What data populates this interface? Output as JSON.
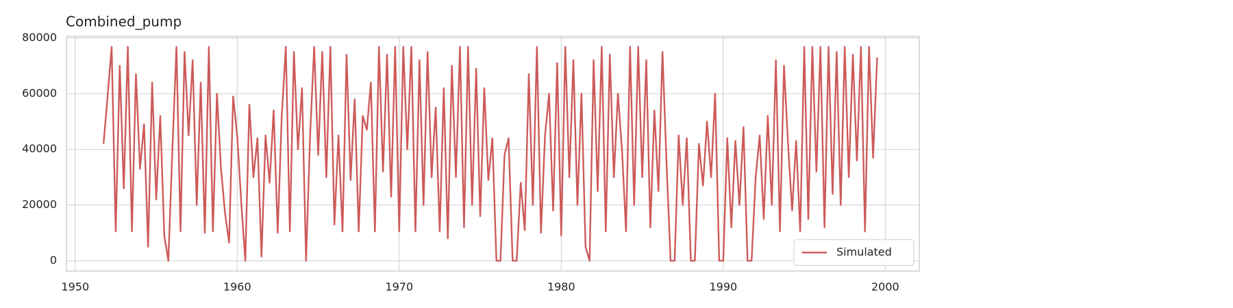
{
  "chart_data": {
    "type": "line",
    "title": "Combined_pump",
    "x": [
      1951.75,
      1952,
      1952.25,
      1952.5,
      1952.75,
      1953,
      1953.25,
      1953.5,
      1953.75,
      1954,
      1954.25,
      1954.5,
      1954.75,
      1955,
      1955.25,
      1955.5,
      1955.75,
      1956,
      1956.25,
      1956.5,
      1956.75,
      1957,
      1957.25,
      1957.5,
      1957.75,
      1958,
      1958.25,
      1958.5,
      1958.75,
      1959,
      1959.25,
      1959.5,
      1959.75,
      1960,
      1960.25,
      1960.5,
      1960.75,
      1961,
      1961.25,
      1961.5,
      1961.75,
      1962,
      1962.25,
      1962.5,
      1962.75,
      1963,
      1963.25,
      1963.5,
      1963.75,
      1964,
      1964.25,
      1964.5,
      1964.75,
      1965,
      1965.25,
      1965.5,
      1965.75,
      1966,
      1966.25,
      1966.5,
      1966.75,
      1967,
      1967.25,
      1967.5,
      1967.75,
      1968,
      1968.25,
      1968.5,
      1968.75,
      1969,
      1969.25,
      1969.5,
      1969.75,
      1970,
      1970.25,
      1970.5,
      1970.75,
      1971,
      1971.25,
      1971.5,
      1971.75,
      1972,
      1972.25,
      1972.5,
      1972.75,
      1973,
      1973.25,
      1973.5,
      1973.75,
      1974,
      1974.25,
      1974.5,
      1974.75,
      1975,
      1975.25,
      1975.5,
      1975.75,
      1976,
      1976.25,
      1976.5,
      1976.75,
      1977,
      1977.25,
      1977.5,
      1977.75,
      1978,
      1978.25,
      1978.5,
      1978.75,
      1979,
      1979.25,
      1979.5,
      1979.75,
      1980,
      1980.25,
      1980.5,
      1980.75,
      1981,
      1981.25,
      1981.5,
      1981.75,
      1982,
      1982.25,
      1982.5,
      1982.75,
      1983,
      1983.25,
      1983.5,
      1983.75,
      1984,
      1984.25,
      1984.5,
      1984.75,
      1985,
      1985.25,
      1985.5,
      1985.75,
      1986,
      1986.25,
      1986.5,
      1986.75,
      1987,
      1987.25,
      1987.5,
      1987.75,
      1988,
      1988.25,
      1988.5,
      1988.75,
      1989,
      1989.25,
      1989.5,
      1989.75,
      1990,
      1990.25,
      1990.5,
      1990.75,
      1991,
      1991.25,
      1991.5,
      1991.75,
      1992,
      1992.25,
      1992.5,
      1992.75,
      1993,
      1993.25,
      1993.5,
      1993.75,
      1994,
      1994.25,
      1994.5,
      1994.75,
      1995,
      1995.25,
      1995.5,
      1995.75,
      1996,
      1996.25,
      1996.5,
      1996.75,
      1997,
      1997.25,
      1997.5,
      1997.75,
      1998,
      1998.25,
      1998.5,
      1998.75,
      1999,
      1999.25,
      1999.5
    ],
    "series": [
      {
        "name": "Simulated",
        "color": "#cd5a5a",
        "values": [
          42000,
          59000,
          76800,
          10500,
          70000,
          26000,
          76800,
          10500,
          67000,
          33000,
          49000,
          5000,
          64000,
          22000,
          52000,
          9000,
          0,
          40000,
          76800,
          10500,
          75000,
          45000,
          72000,
          20000,
          64000,
          10000,
          76800,
          10500,
          60000,
          33000,
          17000,
          6500,
          59000,
          45000,
          21000,
          0,
          56000,
          30000,
          44000,
          1500,
          45000,
          28000,
          54000,
          10000,
          52000,
          76800,
          10500,
          75000,
          40000,
          62000,
          0,
          45000,
          76800,
          38000,
          75000,
          30000,
          76800,
          13000,
          45000,
          10500,
          74000,
          29000,
          58000,
          10500,
          52000,
          47000,
          64000,
          10500,
          76800,
          32000,
          74000,
          23000,
          76800,
          10500,
          76800,
          40000,
          76800,
          10500,
          72000,
          20000,
          75000,
          30000,
          55000,
          10500,
          62000,
          8000,
          70000,
          30000,
          76800,
          12000,
          76800,
          20000,
          69000,
          16000,
          62000,
          29000,
          44000,
          0,
          0,
          38000,
          44000,
          0,
          0,
          28000,
          11000,
          67000,
          20000,
          76800,
          10000,
          45000,
          60000,
          18000,
          71000,
          9000,
          76800,
          30000,
          72000,
          20000,
          60000,
          5000,
          0,
          72000,
          25000,
          76800,
          10500,
          74000,
          30000,
          60000,
          40000,
          10500,
          76800,
          20000,
          76800,
          30000,
          72000,
          12000,
          54000,
          25000,
          75000,
          35000,
          0,
          0,
          45000,
          20000,
          44000,
          0,
          0,
          42000,
          27000,
          50000,
          30000,
          60000,
          0,
          0,
          44000,
          12000,
          43000,
          20000,
          48000,
          0,
          0,
          30000,
          45000,
          15000,
          52000,
          20000,
          72000,
          10500,
          70000,
          42000,
          18000,
          43000,
          10500,
          76800,
          15000,
          76800,
          32000,
          76800,
          12000,
          76800,
          24000,
          75000,
          20000,
          76800,
          30000,
          74000,
          36000,
          76800,
          10500,
          76800,
          37000,
          73000
        ]
      }
    ],
    "xlim": [
      1949.46,
      2002.1
    ],
    "ylim": [
      -3700,
      80600
    ],
    "xticks": [
      1950,
      1960,
      1970,
      1980,
      1990,
      2000
    ],
    "yticks": [
      0,
      20000,
      40000,
      60000,
      80000
    ],
    "grid": true,
    "legend": "lower right"
  }
}
